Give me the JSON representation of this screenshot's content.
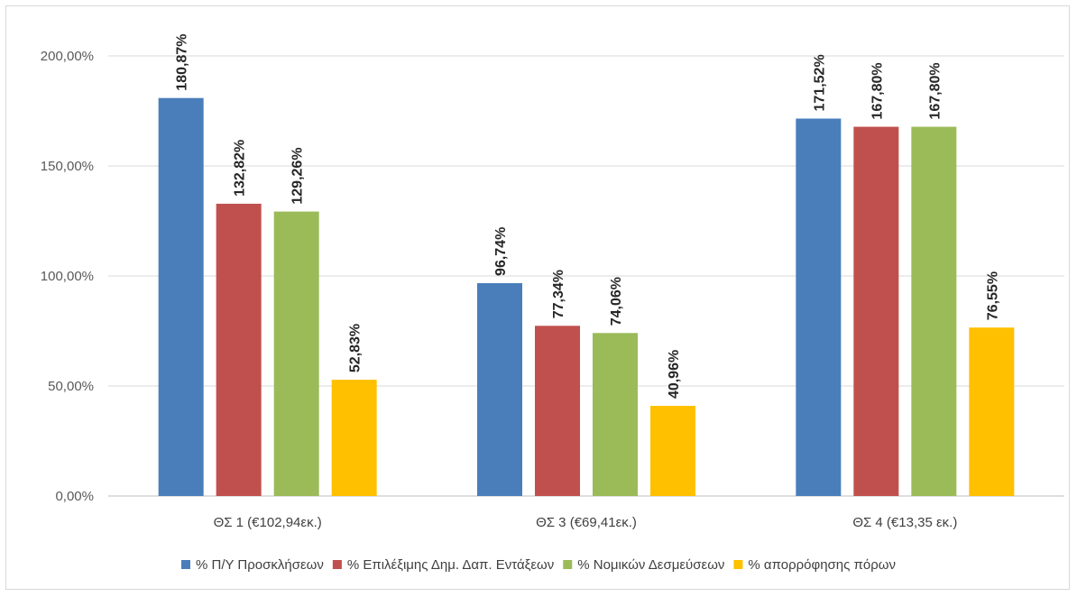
{
  "chart_data": {
    "type": "bar",
    "categories": [
      "ΘΣ 1 (€102,94εκ.)",
      "ΘΣ 3 (€69,41εκ.)",
      "ΘΣ 4 (€13,35 εκ.)"
    ],
    "series": [
      {
        "name": "% Π/Υ Προσκλήσεων",
        "color": "#4a7ebb",
        "values": [
          180.87,
          96.74,
          171.52
        ],
        "labels": [
          "180,87%",
          "96,74%",
          "171,52%"
        ]
      },
      {
        "name": "% Επιλέξιμης Δημ. Δαπ. Εντάξεων",
        "color": "#c0504d",
        "values": [
          132.82,
          77.34,
          167.8
        ],
        "labels": [
          "132,82%",
          "77,34%",
          "167,80%"
        ]
      },
      {
        "name": "% Νομικών Δεσμεύσεων",
        "color": "#9bbb59",
        "values": [
          129.26,
          74.06,
          167.8
        ],
        "labels": [
          "129,26%",
          "74,06%",
          "167,80%"
        ]
      },
      {
        "name": "% απορρόφησης πόρων",
        "color": "#ffc000",
        "values": [
          52.83,
          40.96,
          76.55
        ],
        "labels": [
          "52,83%",
          "40,96%",
          "76,55%"
        ]
      }
    ],
    "yticks": [
      "0,00%",
      "50,00%",
      "100,00%",
      "150,00%",
      "200,00%"
    ],
    "ylim": [
      0,
      200
    ],
    "grid": true,
    "legend_position": "bottom"
  }
}
